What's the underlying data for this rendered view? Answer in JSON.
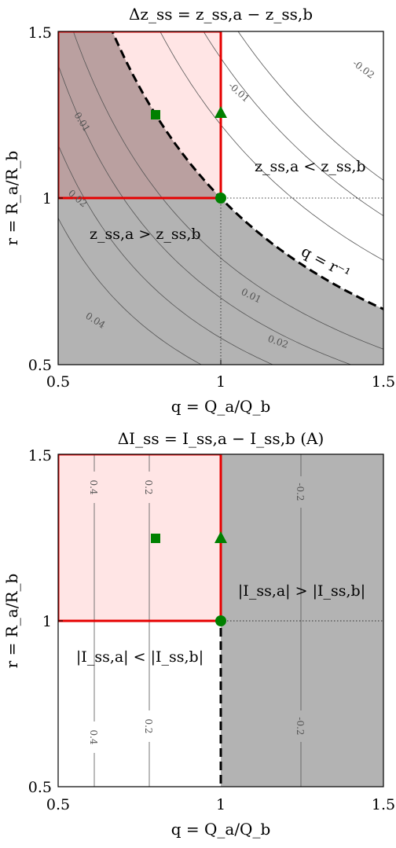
{
  "figure": {
    "background": "#ffffff"
  },
  "chart_data": [
    {
      "type": "contour",
      "title": "Δz_ss = z_ss,a − z_ss,b",
      "xlabel": "q = Q_a/Q_b",
      "ylabel": "r = R_a/R_b",
      "xlim": [
        0.5,
        1.5
      ],
      "ylim": [
        0.5,
        1.5
      ],
      "xticks": [
        "0.5",
        "1",
        "1.5"
      ],
      "yticks": [
        "0.5",
        "1",
        "1.5"
      ],
      "shaded_region": {
        "description": "z_ss,a > z_ss,b",
        "color": "#b3b3b3"
      },
      "boundary": {
        "label": "q = r⁻¹",
        "style": "dashed black"
      },
      "highlight_box": {
        "x": [
          0.5,
          1.0
        ],
        "y": [
          1.0,
          1.5
        ],
        "edge": "#e60000",
        "fill": "#ffe6e6"
      },
      "markers": [
        {
          "shape": "square",
          "x": 0.8,
          "y": 1.25,
          "color": "#008000"
        },
        {
          "shape": "triangle",
          "x": 1.0,
          "y": 1.25,
          "color": "#008000"
        },
        {
          "shape": "circle",
          "x": 1.0,
          "y": 1.0,
          "color": "#008000"
        }
      ],
      "region_labels": [
        "z_ss,a < z_ss,b",
        "z_ss,a > z_ss,b"
      ],
      "contour_labels": [
        "-0.02",
        "-0.01",
        "0.01",
        "0.02",
        "0.01",
        "0.02",
        "0.04"
      ]
    },
    {
      "type": "contour",
      "title": "ΔI_ss = I_ss,a − I_ss,b (A)",
      "xlabel": "q = Q_a/Q_b",
      "ylabel": "r = R_a/R_b",
      "xlim": [
        0.5,
        1.5
      ],
      "ylim": [
        0.5,
        1.5
      ],
      "xticks": [
        "0.5",
        "1",
        "1.5"
      ],
      "yticks": [
        "0.5",
        "1",
        "1.5"
      ],
      "shaded_region": {
        "description": "|I_ss,a| > |I_ss,b|",
        "color": "#b3b3b3"
      },
      "boundary": {
        "label": "q = 1",
        "style": "dashed black"
      },
      "highlight_box": {
        "x": [
          0.5,
          1.0
        ],
        "y": [
          1.0,
          1.5
        ],
        "edge": "#e60000",
        "fill": "#ffe6e6"
      },
      "markers": [
        {
          "shape": "square",
          "x": 0.8,
          "y": 1.25,
          "color": "#008000"
        },
        {
          "shape": "triangle",
          "x": 1.0,
          "y": 1.25,
          "color": "#008000"
        },
        {
          "shape": "circle",
          "x": 1.0,
          "y": 1.0,
          "color": "#008000"
        }
      ],
      "region_labels": [
        "|I_ss,a| > |I_ss,b|",
        "|I_ss,a| < |I_ss,b|"
      ],
      "contour_labels": [
        "0.4",
        "0.2",
        "-0.2",
        "0.4",
        "0.2",
        "-0.2"
      ],
      "contour_x_positions": [
        0.6,
        0.8,
        1.27
      ]
    }
  ]
}
